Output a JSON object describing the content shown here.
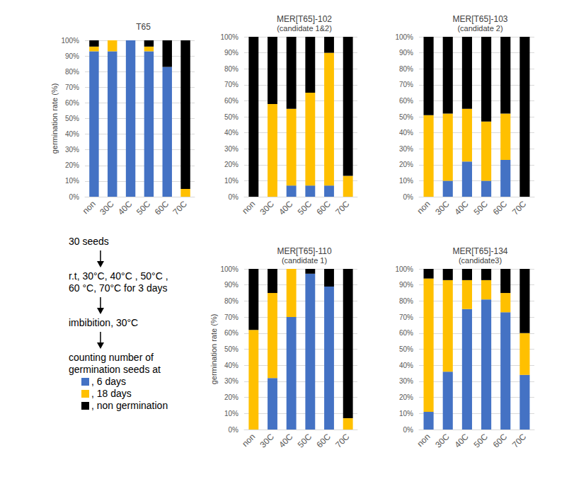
{
  "chart_data": [
    {
      "type": "bar",
      "stacked": true,
      "grid": true,
      "title": "T65",
      "ylabel": "germination rate (%)",
      "categories": [
        "non",
        "30C",
        "40C",
        "50C",
        "60C",
        "70C"
      ],
      "series": [
        {
          "name": "6 days",
          "color": "#4472c4",
          "values": [
            93,
            93,
            100,
            93,
            83,
            0
          ]
        },
        {
          "name": "18 days",
          "color": "#ffc000",
          "values": [
            3,
            7,
            0,
            3,
            0,
            5
          ]
        },
        {
          "name": "non germination",
          "color": "#000000",
          "values": [
            4,
            0,
            0,
            4,
            17,
            95
          ]
        }
      ],
      "ylim": [
        0,
        100
      ],
      "yticks": [
        {
          "value": 0,
          "label": "0%"
        },
        {
          "value": 10,
          "label": "10%"
        },
        {
          "value": 20,
          "label": "20%"
        },
        {
          "value": 30,
          "label": "30%"
        },
        {
          "value": 40,
          "label": "40%"
        },
        {
          "value": 50,
          "label": "50%"
        },
        {
          "value": 60,
          "label": "60%"
        },
        {
          "value": 70,
          "label": "70%"
        },
        {
          "value": 80,
          "label": "80%"
        },
        {
          "value": 90,
          "label": "90%"
        },
        {
          "value": 100,
          "label": "100%"
        }
      ]
    },
    {
      "type": "bar",
      "stacked": true,
      "grid": true,
      "title": "MER[T65]-102",
      "subtitle": "(candidate 1&2)",
      "categories": [
        "non",
        "30C",
        "40C",
        "50C",
        "60C",
        "70C"
      ],
      "series": [
        {
          "name": "6 days",
          "color": "#4472c4",
          "values": [
            0,
            0,
            7,
            7,
            7,
            0
          ]
        },
        {
          "name": "18 days",
          "color": "#ffc000",
          "values": [
            0,
            58,
            48,
            58,
            83,
            13
          ]
        },
        {
          "name": "non germination",
          "color": "#000000",
          "values": [
            100,
            42,
            45,
            35,
            10,
            87
          ]
        }
      ],
      "ylim": [
        0,
        100
      ],
      "yticks": [
        {
          "value": 0,
          "label": "0%"
        },
        {
          "value": 10,
          "label": "10%"
        },
        {
          "value": 20,
          "label": "20%"
        },
        {
          "value": 30,
          "label": "30%"
        },
        {
          "value": 40,
          "label": "40%"
        },
        {
          "value": 50,
          "label": "50%"
        },
        {
          "value": 60,
          "label": "60%"
        },
        {
          "value": 70,
          "label": "70%"
        },
        {
          "value": 80,
          "label": "80%"
        },
        {
          "value": 90,
          "label": "90%"
        },
        {
          "value": 100,
          "label": "100%"
        }
      ]
    },
    {
      "type": "bar",
      "stacked": true,
      "grid": true,
      "title": "MER[T65]-103",
      "subtitle": "(candidate 2)",
      "categories": [
        "non",
        "30C",
        "40C",
        "50C",
        "60C",
        "70C"
      ],
      "series": [
        {
          "name": "6 days",
          "color": "#4472c4",
          "values": [
            0,
            10,
            22,
            10,
            23,
            0
          ]
        },
        {
          "name": "18 days",
          "color": "#ffc000",
          "values": [
            51,
            42,
            33,
            37,
            29,
            0
          ]
        },
        {
          "name": "non germination",
          "color": "#000000",
          "values": [
            49,
            48,
            45,
            53,
            48,
            100
          ]
        }
      ],
      "ylim": [
        0,
        100
      ],
      "yticks": [
        {
          "value": 0,
          "label": "0%"
        },
        {
          "value": 10,
          "label": "10%"
        },
        {
          "value": 20,
          "label": "20%"
        },
        {
          "value": 30,
          "label": "30%"
        },
        {
          "value": 40,
          "label": "40%"
        },
        {
          "value": 50,
          "label": "50%"
        },
        {
          "value": 60,
          "label": "60%"
        },
        {
          "value": 70,
          "label": "70%"
        },
        {
          "value": 80,
          "label": "80%"
        },
        {
          "value": 90,
          "label": "90%"
        },
        {
          "value": 100,
          "label": "100%"
        }
      ]
    },
    {
      "type": "bar",
      "stacked": true,
      "grid": true,
      "title": "MER[T65]-110",
      "subtitle": "(candidate 1)",
      "ylabel": "germination rate (%)",
      "categories": [
        "non",
        "30C",
        "40C",
        "50C",
        "60C",
        "70C"
      ],
      "series": [
        {
          "name": "6 days",
          "color": "#4472c4",
          "values": [
            0,
            32,
            70,
            97,
            89,
            0
          ]
        },
        {
          "name": "18 days",
          "color": "#ffc000",
          "values": [
            62,
            53,
            30,
            0,
            0,
            7
          ]
        },
        {
          "name": "non germination",
          "color": "#000000",
          "values": [
            38,
            15,
            0,
            3,
            11,
            93
          ]
        }
      ],
      "ylim": [
        0,
        100
      ],
      "yticks": [
        {
          "value": 0,
          "label": "0%"
        },
        {
          "value": 10,
          "label": "10%"
        },
        {
          "value": 20,
          "label": "20%"
        },
        {
          "value": 30,
          "label": "30%"
        },
        {
          "value": 40,
          "label": "40%"
        },
        {
          "value": 50,
          "label": "50%"
        },
        {
          "value": 60,
          "label": "60%"
        },
        {
          "value": 70,
          "label": "70%"
        },
        {
          "value": 80,
          "label": "80%"
        },
        {
          "value": 90,
          "label": "90%"
        },
        {
          "value": 100,
          "label": "100%"
        }
      ]
    },
    {
      "type": "bar",
      "stacked": true,
      "grid": true,
      "title": "MER[T65]-134",
      "subtitle": "(candidate3)",
      "categories": [
        "non",
        "30C",
        "40C",
        "50C",
        "60C",
        "70C"
      ],
      "series": [
        {
          "name": "6 days",
          "color": "#4472c4",
          "values": [
            11,
            36,
            75,
            81,
            73,
            34
          ]
        },
        {
          "name": "18 days",
          "color": "#ffc000",
          "values": [
            83,
            57,
            18,
            12,
            12,
            26
          ]
        },
        {
          "name": "non germination",
          "color": "#000000",
          "values": [
            6,
            7,
            7,
            7,
            15,
            40
          ]
        }
      ],
      "ylim": [
        0,
        100
      ],
      "yticks": [
        {
          "value": 0,
          "label": "0%"
        },
        {
          "value": 10,
          "label": "10%"
        },
        {
          "value": 20,
          "label": "20%"
        },
        {
          "value": 30,
          "label": "30%"
        },
        {
          "value": 40,
          "label": "40%"
        },
        {
          "value": 50,
          "label": "50%"
        },
        {
          "value": 60,
          "label": "60%"
        },
        {
          "value": 70,
          "label": "70%"
        },
        {
          "value": 80,
          "label": "80%"
        },
        {
          "value": 90,
          "label": "90%"
        },
        {
          "value": 100,
          "label": "100%"
        }
      ]
    }
  ],
  "protocol": {
    "steps": [
      [
        "30 seeds"
      ],
      [
        "r.t, 30°C, 40°C , 50°C ,",
        "60 °C, 70°C for 3 days"
      ],
      [
        "imbibition, 30°C"
      ],
      [
        "counting number of",
        "germination seeds at"
      ]
    ],
    "key": [
      {
        "label": ", 6 days",
        "color": "#4472c4"
      },
      {
        "label": ", 18 days",
        "color": "#ffc000"
      },
      {
        "label": ", non germination",
        "color": "#000000"
      }
    ]
  }
}
